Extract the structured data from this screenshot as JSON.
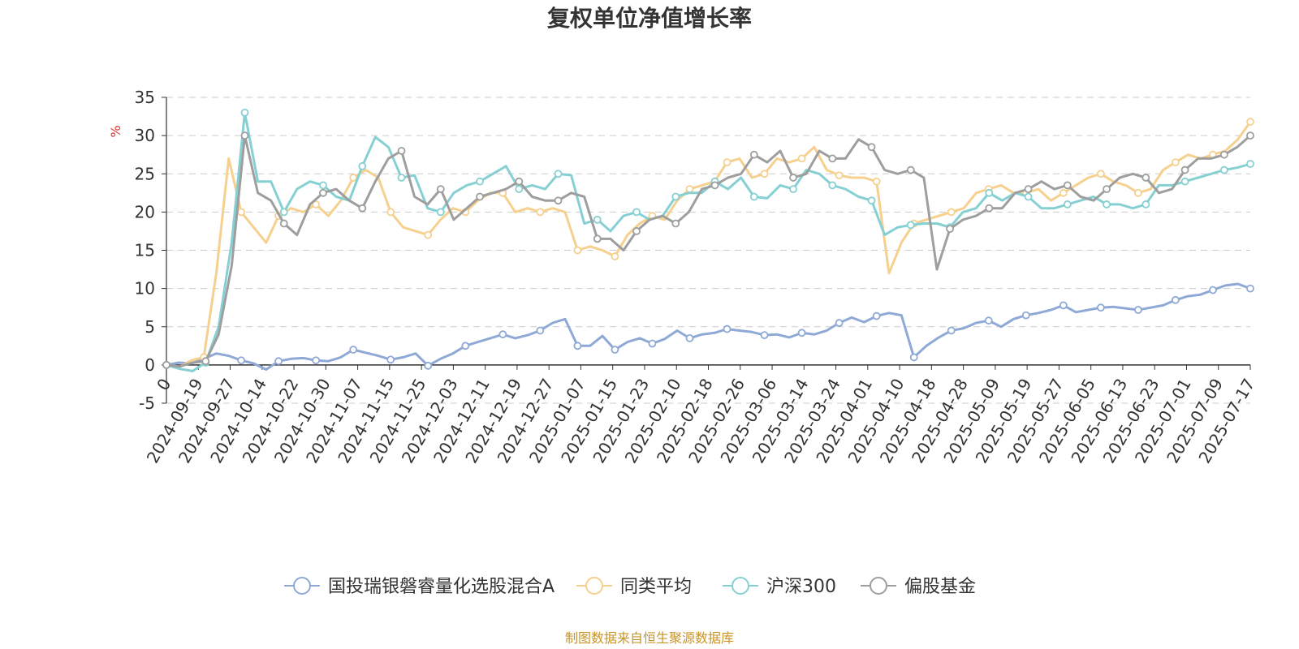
{
  "chart_data": {
    "type": "line",
    "title": "复权单位净值增长率",
    "ylabel": "%",
    "ylim": [
      -5,
      35
    ],
    "yticks": [
      -5,
      0,
      5,
      10,
      15,
      20,
      25,
      30,
      35
    ],
    "grid": true,
    "legend_position": "bottom",
    "x_tick_labels": [
      "0",
      "2024-09-19",
      "2024-09-27",
      "2024-10-14",
      "2024-10-22",
      "2024-10-30",
      "2024-11-07",
      "2024-11-15",
      "2024-11-25",
      "2024-12-03",
      "2024-12-11",
      "2024-12-19",
      "2024-12-27",
      "2025-01-07",
      "2025-01-15",
      "2025-01-23",
      "2025-02-10",
      "2025-02-18",
      "2025-02-26",
      "2025-03-06",
      "2025-03-14",
      "2025-03-24",
      "2025-04-01",
      "2025-04-10",
      "2025-04-18",
      "2025-04-28",
      "2025-05-09",
      "2025-05-19",
      "2025-05-27",
      "2025-06-05",
      "2025-06-13",
      "2025-06-23",
      "2025-07-01",
      "2025-07-09",
      "2025-07-17"
    ],
    "series": [
      {
        "name": "国投瑞银磐睿量化选股混合A",
        "color": "#8fa9d6",
        "values": [
          0,
          0.3,
          0.2,
          0.8,
          1.5,
          1.2,
          0.6,
          0.2,
          -0.6,
          0.5,
          0.8,
          0.9,
          0.6,
          0.5,
          1.0,
          2.0,
          1.6,
          1.2,
          0.7,
          1.0,
          1.5,
          -0.1,
          0.8,
          1.5,
          2.5,
          3.0,
          3.5,
          4.0,
          3.5,
          3.9,
          4.5,
          5.5,
          6.0,
          2.5,
          2.5,
          3.8,
          2.0,
          3.0,
          3.5,
          2.8,
          3.4,
          4.5,
          3.5,
          4.0,
          4.2,
          4.7,
          4.5,
          4.3,
          3.9,
          4.0,
          3.6,
          4.2,
          4.0,
          4.5,
          5.5,
          6.2,
          5.6,
          6.4,
          6.8,
          6.5,
          1.0,
          2.5,
          3.6,
          4.5,
          4.8,
          5.5,
          5.8,
          5.0,
          6.0,
          6.5,
          6.8,
          7.2,
          7.8,
          6.9,
          7.2,
          7.5,
          7.6,
          7.4,
          7.2,
          7.5,
          7.8,
          8.5,
          9.0,
          9.2,
          9.8,
          10.4,
          10.6,
          10.0
        ]
      },
      {
        "name": "同类平均",
        "color": "#f5d08e",
        "values": [
          0,
          -0.3,
          0.6,
          1.0,
          12.0,
          27.0,
          20.0,
          18.0,
          16.0,
          19.5,
          20.5,
          20.0,
          21.0,
          19.5,
          21.5,
          24.5,
          25.5,
          24.5,
          20.0,
          18.0,
          17.5,
          17.0,
          19.0,
          20.5,
          20.0,
          21.5,
          22.5,
          22.5,
          20.0,
          20.5,
          20.0,
          20.5,
          20.0,
          15.0,
          15.5,
          15.0,
          14.2,
          17.0,
          18.5,
          19.5,
          19.0,
          21.5,
          23.0,
          23.5,
          24.0,
          26.5,
          27.0,
          24.5,
          25.0,
          27.0,
          26.5,
          27.0,
          28.5,
          25.5,
          24.8,
          24.5,
          24.5,
          24.0,
          12.0,
          16.0,
          18.5,
          19.0,
          19.5,
          20.0,
          20.5,
          22.5,
          23.0,
          23.5,
          22.5,
          22.5,
          23.0,
          21.5,
          22.5,
          23.5,
          24.5,
          25.0,
          24.0,
          23.5,
          22.5,
          23.0,
          25.5,
          26.5,
          27.5,
          27.0,
          27.5,
          28.0,
          29.5,
          31.8
        ]
      },
      {
        "name": "沪深300",
        "color": "#86d0d3",
        "values": [
          0,
          -0.5,
          -0.8,
          0.3,
          5.0,
          16.0,
          33.0,
          24.0,
          24.0,
          20.0,
          23.0,
          24.0,
          23.5,
          22.0,
          21.5,
          26.0,
          29.8,
          28.5,
          24.5,
          24.8,
          20.5,
          20.0,
          22.5,
          23.5,
          24.0,
          25.0,
          26.0,
          23.0,
          23.5,
          23.0,
          25.0,
          24.8,
          18.5,
          19.0,
          17.5,
          19.5,
          20.0,
          19.0,
          19.5,
          22.0,
          22.5,
          22.5,
          24.0,
          23.0,
          24.5,
          22.0,
          21.8,
          23.5,
          23.0,
          25.5,
          25.0,
          23.5,
          23.0,
          22.0,
          21.5,
          17.0,
          18.0,
          18.3,
          18.5,
          18.5,
          18.0,
          20.0,
          20.5,
          22.5,
          21.5,
          22.5,
          22.0,
          20.5,
          20.5,
          21.0,
          21.5,
          22.0,
          21.0,
          21.0,
          20.5,
          21.0,
          23.5,
          23.5,
          24.0,
          24.5,
          25.0,
          25.5,
          25.8,
          26.3
        ]
      },
      {
        "name": "偏股基金",
        "color": "#9e9e9e",
        "values": [
          0,
          -0.2,
          0.3,
          0.5,
          4.0,
          13.0,
          30.0,
          22.5,
          21.5,
          18.5,
          17.0,
          21.0,
          22.5,
          23.0,
          21.5,
          20.5,
          24.0,
          27.0,
          28.0,
          22.0,
          21.0,
          23.0,
          19.0,
          20.5,
          22.0,
          22.5,
          23.0,
          24.0,
          22.0,
          21.5,
          21.5,
          22.5,
          22.0,
          16.5,
          16.5,
          15.0,
          17.5,
          19.0,
          19.5,
          18.5,
          20.0,
          23.0,
          23.5,
          24.5,
          25.0,
          27.5,
          26.5,
          28.0,
          24.5,
          25.0,
          28.0,
          27.0,
          27.0,
          29.5,
          28.5,
          25.5,
          25.0,
          25.5,
          24.5,
          12.5,
          17.8,
          19.0,
          19.5,
          20.5,
          20.5,
          22.5,
          23.0,
          24.0,
          23.0,
          23.5,
          22.0,
          21.5,
          23.0,
          24.5,
          25.0,
          24.5,
          22.5,
          23.0,
          25.5,
          27.0,
          27.0,
          27.5,
          28.5,
          30.0
        ]
      }
    ]
  },
  "legend": [
    {
      "label": "国投瑞银磐睿量化选股混合A",
      "color": "#8fa9d6"
    },
    {
      "label": "同类平均",
      "color": "#f5d08e"
    },
    {
      "label": "沪深300",
      "color": "#86d0d3"
    },
    {
      "label": "偏股基金",
      "color": "#9e9e9e"
    }
  ],
  "footer": {
    "source": "制图数据来自恒生聚源数据库"
  }
}
